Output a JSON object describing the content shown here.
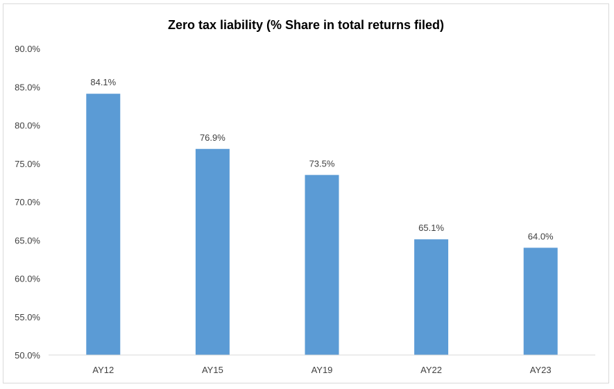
{
  "chart_data": {
    "type": "bar",
    "title": "Zero tax liability (% Share in total returns filed)",
    "xlabel": "",
    "ylabel": "",
    "categories": [
      "AY12",
      "AY15",
      "AY19",
      "AY22",
      "AY23"
    ],
    "values": [
      84.1,
      76.9,
      73.5,
      65.1,
      64.0
    ],
    "data_labels": [
      "84.1%",
      "76.9%",
      "73.5%",
      "65.1%",
      "64.0%"
    ],
    "ylim": [
      50,
      90
    ],
    "y_ticks": [
      50,
      55,
      60,
      65,
      70,
      75,
      80,
      85,
      90
    ],
    "y_tick_labels": [
      "50.0%",
      "55.0%",
      "60.0%",
      "65.0%",
      "70.0%",
      "75.0%",
      "80.0%",
      "85.0%",
      "90.0%"
    ],
    "grid": false,
    "legend": "none",
    "bar_color": "#5b9bd5"
  }
}
